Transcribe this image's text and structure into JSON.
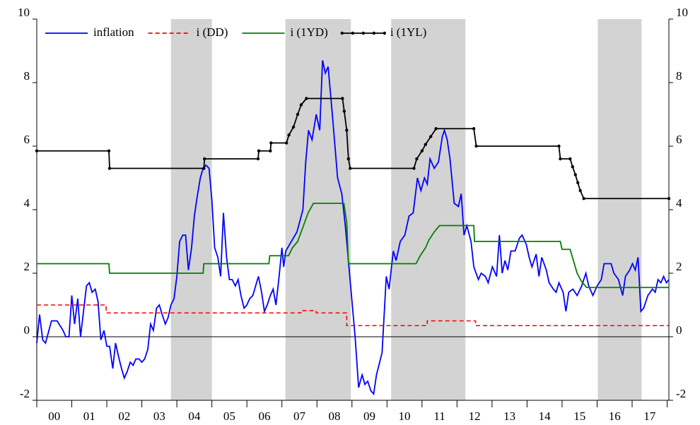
{
  "chart_data": {
    "type": "line",
    "xlim": [
      2000,
      2018.05
    ],
    "xticks": [
      {
        "value": 2000.5,
        "label": "00"
      },
      {
        "value": 2001.5,
        "label": "01"
      },
      {
        "value": 2002.5,
        "label": "02"
      },
      {
        "value": 2003.5,
        "label": "03"
      },
      {
        "value": 2004.5,
        "label": "04"
      },
      {
        "value": 2005.5,
        "label": "05"
      },
      {
        "value": 2006.5,
        "label": "06"
      },
      {
        "value": 2007.5,
        "label": "07"
      },
      {
        "value": 2008.5,
        "label": "08"
      },
      {
        "value": 2009.5,
        "label": "09"
      },
      {
        "value": 2010.5,
        "label": "10"
      },
      {
        "value": 2011.5,
        "label": "11"
      },
      {
        "value": 2012.5,
        "label": "12"
      },
      {
        "value": 2013.5,
        "label": "13"
      },
      {
        "value": 2014.5,
        "label": "14"
      },
      {
        "value": 2015.5,
        "label": "15"
      },
      {
        "value": 2016.5,
        "label": "16"
      },
      {
        "value": 2017.5,
        "label": "17"
      }
    ],
    "ylim": [
      -2,
      10
    ],
    "yticks": [
      -2,
      0,
      2,
      4,
      6,
      8,
      10
    ],
    "y2lim": [
      -2,
      10
    ],
    "y2ticks": [
      -2,
      0,
      2,
      4,
      6,
      8,
      10
    ],
    "zero_line": true,
    "shaded": [
      [
        2003.83,
        2005.0
      ],
      [
        2007.1,
        2008.97
      ],
      [
        2010.12,
        2012.24
      ],
      [
        2016.02,
        2017.27
      ]
    ],
    "shade_color": "#d3d3d3",
    "legend": "top-left",
    "series": [
      {
        "name": "inflation",
        "color": "#0000ff",
        "dash": false,
        "markers": false,
        "x": [
          2000,
          2000.08,
          2000.17,
          2000.25,
          2000.42,
          2000.58,
          2000.75,
          2000.83,
          2000.92,
          2001,
          2001.08,
          2001.17,
          2001.25,
          2001.42,
          2001.5,
          2001.58,
          2001.67,
          2001.75,
          2001.83,
          2001.92,
          2002,
          2002.08,
          2002.17,
          2002.25,
          2002.33,
          2002.42,
          2002.5,
          2002.58,
          2002.67,
          2002.75,
          2002.83,
          2002.92,
          2003,
          2003.08,
          2003.17,
          2003.25,
          2003.33,
          2003.42,
          2003.5,
          2003.58,
          2003.67,
          2003.75,
          2003.83,
          2003.92,
          2004,
          2004.08,
          2004.17,
          2004.25,
          2004.33,
          2004.42,
          2004.5,
          2004.58,
          2004.67,
          2004.75,
          2004.83,
          2004.92,
          2005,
          2005.08,
          2005.17,
          2005.25,
          2005.33,
          2005.42,
          2005.5,
          2005.58,
          2005.67,
          2005.75,
          2005.83,
          2005.92,
          2006,
          2006.08,
          2006.17,
          2006.25,
          2006.33,
          2006.42,
          2006.5,
          2006.58,
          2006.67,
          2006.75,
          2006.83,
          2006.92,
          2007,
          2007.05,
          2007.11,
          2007.43,
          2007.6,
          2007.68,
          2007.76,
          2007.86,
          2007.98,
          2008.08,
          2008.16,
          2008.24,
          2008.32,
          2008.44,
          2008.59,
          2008.71,
          2008.81,
          2008.93,
          2009.09,
          2009.19,
          2009.29,
          2009.37,
          2009.45,
          2009.54,
          2009.62,
          2009.7,
          2009.86,
          2009.98,
          2010.06,
          2010.18,
          2010.26,
          2010.38,
          2010.51,
          2010.63,
          2010.75,
          2010.87,
          2010.97,
          2011.07,
          2011.15,
          2011.23,
          2011.35,
          2011.47,
          2011.58,
          2011.64,
          2011.72,
          2011.8,
          2011.92,
          2012.04,
          2012.12,
          2012.2,
          2012.28,
          2012.4,
          2012.48,
          2012.61,
          2012.69,
          2012.81,
          2012.89,
          2013.01,
          2013.13,
          2013.21,
          2013.29,
          2013.37,
          2013.45,
          2013.54,
          2013.66,
          2013.78,
          2013.86,
          2013.98,
          2014.06,
          2014.14,
          2014.26,
          2014.34,
          2014.42,
          2014.55,
          2014.63,
          2014.75,
          2014.83,
          2014.91,
          2015.03,
          2015.11,
          2015.19,
          2015.31,
          2015.43,
          2015.56,
          2015.68,
          2015.76,
          2015.88,
          2016,
          2016.12,
          2016.2,
          2016.32,
          2016.4,
          2016.48,
          2016.61,
          2016.73,
          2016.81,
          2016.93,
          2017.01,
          2017.09,
          2017.17,
          2017.25,
          2017.33,
          2017.45,
          2017.58,
          2017.66,
          2017.74,
          2017.82,
          2017.9,
          2017.98,
          2018.05
        ],
        "values": [
          -0.2,
          0.7,
          -0.1,
          -0.2,
          0.5,
          0.5,
          0.2,
          0,
          0,
          1.3,
          0.4,
          1.2,
          0,
          1.6,
          1.7,
          1.4,
          1.5,
          1.1,
          -0.1,
          0.2,
          -0.3,
          -0.3,
          -1,
          -0.2,
          -0.6,
          -1,
          -1.3,
          -1.1,
          -0.8,
          -0.9,
          -0.7,
          -0.7,
          -0.8,
          -0.7,
          -0.4,
          0.4,
          0.2,
          0.9,
          1,
          0.7,
          0.4,
          0.6,
          1,
          1.2,
          1.9,
          3,
          3.2,
          3.2,
          2.1,
          2.8,
          3.8,
          4.4,
          5,
          5.3,
          5.4,
          5.3,
          4.3,
          2.8,
          2.5,
          1.9,
          3.9,
          2.5,
          1.8,
          1.8,
          1.6,
          1.8,
          1.3,
          0.9,
          1,
          1.2,
          1.3,
          1.6,
          1.9,
          1.4,
          0.8,
          1,
          1.3,
          1.5,
          1,
          1.9,
          2.8,
          2.2,
          2.7,
          3.3,
          4,
          5.5,
          6.5,
          6.2,
          7,
          6.5,
          8.7,
          8.3,
          8.5,
          7,
          5,
          4.5,
          3.5,
          2,
          0,
          -1.6,
          -1.2,
          -1.5,
          -1.4,
          -1.7,
          -1.8,
          -1.2,
          -0.5,
          1.9,
          1.5,
          2.7,
          2.4,
          3,
          3.2,
          3.8,
          3.9,
          5,
          4.6,
          5,
          4.8,
          5.6,
          5.3,
          5.5,
          6.3,
          6.5,
          6.2,
          5.6,
          4.2,
          4.1,
          4.5,
          3.2,
          3.5,
          3,
          2.2,
          1.8,
          2,
          1.9,
          1.7,
          2.2,
          1.9,
          3.2,
          2,
          2.4,
          2.1,
          2.7,
          2.7,
          3.1,
          3.2,
          2.9,
          2.5,
          2.2,
          2.6,
          1.9,
          2.5,
          2.1,
          1.7,
          1.5,
          1.4,
          1.7,
          1.4,
          0.8,
          1.4,
          1.5,
          1.3,
          1.6,
          2,
          1.6,
          1.3,
          1.6,
          1.8,
          2.3,
          2.3,
          2.3,
          2,
          1.8,
          1.3,
          1.9,
          2.1,
          2.3,
          2.1,
          2.5,
          0.8,
          0.9,
          1.3,
          1.5,
          1.4,
          1.8,
          1.7,
          1.9,
          1.7,
          1.8
        ]
      },
      {
        "name": "i (DD)",
        "color": "#ff0000",
        "dash": true,
        "markers": false,
        "x": [
          2000,
          2001.98,
          2001.98,
          2007.54,
          2007.54,
          2007.98,
          2007.98,
          2008.85,
          2008.85,
          2011.15,
          2011.15,
          2012.53,
          2012.53,
          2018.05
        ],
        "values": [
          1,
          1,
          0.75,
          0.75,
          0.82,
          0.82,
          0.75,
          0.75,
          0.35,
          0.35,
          0.5,
          0.5,
          0.35,
          0.35
        ]
      },
      {
        "name": "i (1YD)",
        "color": "#008000",
        "dash": false,
        "markers": false,
        "x": [
          2000,
          2002.06,
          2002.08,
          2004.75,
          2004.77,
          2006.63,
          2006.65,
          2007.19,
          2007.3,
          2007.45,
          2007.55,
          2007.65,
          2007.75,
          2007.9,
          2008.77,
          2008.85,
          2008.9,
          2010.83,
          2010.95,
          2011.1,
          2011.2,
          2011.35,
          2011.5,
          2012.48,
          2012.5,
          2014.95,
          2015,
          2015.23,
          2015.35,
          2015.43,
          2015.55,
          2015.7,
          2018.05
        ],
        "values": [
          2.3,
          2.3,
          2,
          2,
          2.3,
          2.3,
          2.55,
          2.55,
          2.8,
          3,
          3.3,
          3.6,
          3.9,
          4.2,
          4.2,
          3.6,
          2.3,
          2.3,
          2.55,
          2.8,
          3.05,
          3.3,
          3.5,
          3.5,
          3,
          3,
          2.75,
          2.75,
          2.3,
          2,
          1.75,
          1.55,
          1.55
        ]
      },
      {
        "name": "i (1YL)",
        "color": "#000000",
        "dash": false,
        "markers": true,
        "x": [
          2000,
          2002.06,
          2002.08,
          2004.77,
          2004.79,
          2006.32,
          2006.34,
          2006.67,
          2006.69,
          2007.13,
          2007.2,
          2007.33,
          2007.45,
          2007.55,
          2007.7,
          2008.73,
          2008.78,
          2008.85,
          2008.9,
          2008.95,
          2010.77,
          2010.85,
          2011,
          2011.1,
          2011.25,
          2011.4,
          2012.48,
          2012.55,
          2014.91,
          2014.95,
          2015.23,
          2015.3,
          2015.38,
          2015.45,
          2015.52,
          2015.62,
          2018.05
        ],
        "values": [
          5.85,
          5.85,
          5.3,
          5.3,
          5.6,
          5.6,
          5.85,
          5.85,
          6.1,
          6.1,
          6.35,
          6.6,
          7,
          7.3,
          7.5,
          7.5,
          7.1,
          6.5,
          5.6,
          5.3,
          5.3,
          5.6,
          5.85,
          6.05,
          6.3,
          6.55,
          6.55,
          6,
          6,
          5.6,
          5.6,
          5.35,
          5.1,
          4.85,
          4.6,
          4.35,
          4.35
        ]
      }
    ]
  }
}
